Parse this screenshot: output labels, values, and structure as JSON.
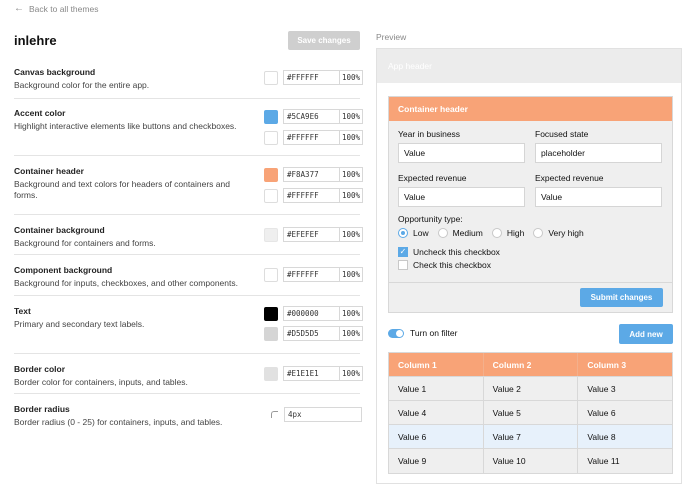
{
  "nav": {
    "back_label": "Back to all themes"
  },
  "theme": {
    "name": "inlehre",
    "save_label": "Save changes"
  },
  "settings": [
    {
      "title": "Canvas background",
      "desc": "Background color for the entire app.",
      "colors": [
        {
          "hex": "#FFFFFF",
          "pct": "100%"
        }
      ]
    },
    {
      "title": "Accent color",
      "desc": "Highlight interactive elements like buttons and checkboxes.",
      "colors": [
        {
          "hex": "#5CA9E6",
          "pct": "100%"
        },
        {
          "hex": "#FFFFFF",
          "pct": "100%"
        }
      ]
    },
    {
      "title": "Container header",
      "desc": "Background and text colors for headers of containers and forms.",
      "colors": [
        {
          "hex": "#F8A377",
          "pct": "100%"
        },
        {
          "hex": "#FFFFFF",
          "pct": "100%"
        }
      ]
    },
    {
      "title": "Container background",
      "desc": "Background for containers and forms.",
      "colors": [
        {
          "hex": "#EFEFEF",
          "pct": "100%"
        }
      ]
    },
    {
      "title": "Component background",
      "desc": "Background for inputs, checkboxes, and other components.",
      "colors": [
        {
          "hex": "#FFFFFF",
          "pct": "100%"
        }
      ]
    },
    {
      "title": "Text",
      "desc": "Primary and secondary text labels.",
      "colors": [
        {
          "hex": "#000000",
          "pct": "100%"
        },
        {
          "hex": "#D5D5D5",
          "pct": "100%"
        }
      ]
    },
    {
      "title": "Border color",
      "desc": "Border color for containers, inputs, and tables.",
      "colors": [
        {
          "hex": "#E1E1E1",
          "pct": "100%"
        }
      ]
    },
    {
      "title": "Border radius",
      "desc": "Border radius (0 - 25) for containers, inputs, and tables.",
      "value": "4px"
    }
  ],
  "preview": {
    "label": "Preview",
    "app_header": "App header",
    "container_header": "Container header",
    "fields": [
      {
        "label": "Year in business",
        "value": "Value"
      },
      {
        "label": "Focused state",
        "value": "placeholder"
      },
      {
        "label": "Expected revenue",
        "value": "Value"
      },
      {
        "label": "Expected revenue",
        "value": "Value"
      }
    ],
    "opportunity_label": "Opportunity type:",
    "radios": [
      "Low",
      "Medium",
      "High",
      "Very high"
    ],
    "radio_selected": "Low",
    "checkboxes": [
      {
        "label": "Uncheck this checkbox",
        "checked": true
      },
      {
        "label": "Check this checkbox",
        "checked": false
      }
    ],
    "submit_label": "Submit changes",
    "toggle_label": "Turn on filter",
    "toggle_on": true,
    "add_label": "Add new",
    "table": {
      "columns": [
        "Column 1",
        "Column 2",
        "Column 3"
      ],
      "rows": [
        [
          "Value 1",
          "Value 2",
          "Value 3"
        ],
        [
          "Value 4",
          "Value 5",
          "Value 6"
        ],
        [
          "Value 6",
          "Value 7",
          "Value 8"
        ],
        [
          "Value 9",
          "Value 10",
          "Value 11"
        ]
      ],
      "highlighted_row": 2
    }
  }
}
